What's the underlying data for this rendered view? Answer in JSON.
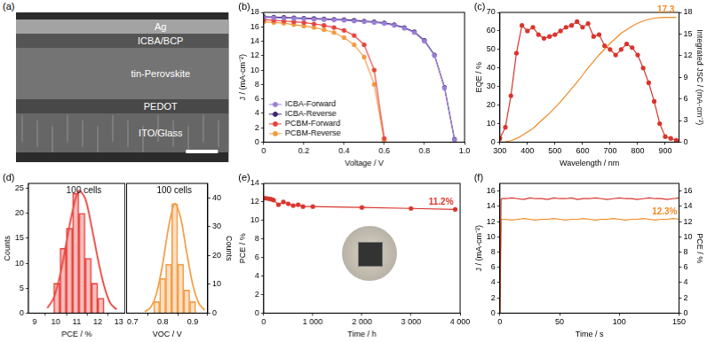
{
  "image_panel": {
    "panel": "(a)",
    "layers": [
      "Ag",
      "ICBA/BCP",
      "tin-Perovskite",
      "PEDOT",
      "ITO/Glass"
    ]
  },
  "chart_data": [
    {
      "panel": "(b)",
      "type": "line",
      "x_label": "Voltage / V",
      "y_label": "J / (mA·cm⁻²)",
      "xlim": [
        0,
        1
      ],
      "xticks": [
        0,
        0.2,
        0.4,
        0.6,
        0.8,
        {
          "value": 1,
          "label": "1.0"
        }
      ],
      "ylim": [
        0,
        18
      ],
      "yticks": [
        0,
        2,
        4,
        6,
        8,
        10,
        12,
        14,
        16,
        18
      ],
      "grid": false,
      "legend": "lower left",
      "x": [
        0,
        0.05,
        0.1,
        0.15,
        0.2,
        0.25,
        0.3,
        0.35,
        0.4,
        0.45,
        0.5,
        0.55,
        0.6,
        0.65,
        0.7,
        0.75,
        0.8,
        0.85,
        0.9,
        0.95
      ],
      "series": [
        {
          "name": "ICBA-Forward",
          "color": "#9b7fd4",
          "marker": "circle",
          "line_style": "solid",
          "values": [
            17.3,
            17.25,
            17.2,
            17.15,
            17.1,
            17.05,
            17.0,
            16.95,
            16.9,
            16.8,
            16.7,
            16.6,
            16.45,
            16.2,
            15.8,
            15.2,
            14.0,
            12.0,
            7.5,
            0.3
          ]
        },
        {
          "name": "ICBA-Reverse",
          "color": "#3b2470",
          "marker": "circle",
          "line_style": "solid",
          "values": [
            17.4,
            17.35,
            17.3,
            17.25,
            17.2,
            17.15,
            17.1,
            17.05,
            17.0,
            16.9,
            16.8,
            16.7,
            16.55,
            16.3,
            15.9,
            15.3,
            14.1,
            12.1,
            7.6,
            0.4
          ]
        },
        {
          "name": "PCBM-Forward",
          "color": "#e8423c",
          "marker": "circle",
          "line_style": "solid",
          "values": [
            17.0,
            16.9,
            16.8,
            16.7,
            16.6,
            16.4,
            16.2,
            15.9,
            15.5,
            14.8,
            13.5,
            10.0,
            0.5,
            null,
            null,
            null,
            null,
            null,
            null,
            null
          ]
        },
        {
          "name": "PCBM-Reverse",
          "color": "#f39a3c",
          "marker": "circle",
          "line_style": "solid",
          "values": [
            16.7,
            16.6,
            16.5,
            16.3,
            16.1,
            15.9,
            15.6,
            15.2,
            14.5,
            13.5,
            11.8,
            8.0,
            0.2,
            null,
            null,
            null,
            null,
            null,
            null,
            null
          ]
        }
      ]
    },
    {
      "panel": "(c)",
      "type": "line",
      "x_label": "Wavelength / nm",
      "y_label": "EQE / %",
      "y2_label": "Integrated JSC / (mA·cm⁻²)",
      "xlim": [
        300,
        950
      ],
      "xticks": [
        300,
        400,
        500,
        600,
        700,
        800,
        900
      ],
      "ylim": [
        0,
        70
      ],
      "yticks": [
        0,
        10,
        20,
        30,
        40,
        50,
        60,
        70
      ],
      "y2lim": [
        0,
        18
      ],
      "y2ticks": [
        0,
        3,
        6,
        9,
        12,
        15,
        18
      ],
      "grid": false,
      "x": [
        300,
        320,
        340,
        360,
        380,
        400,
        420,
        440,
        460,
        480,
        500,
        520,
        540,
        560,
        580,
        600,
        620,
        640,
        660,
        680,
        700,
        720,
        740,
        760,
        780,
        800,
        820,
        840,
        860,
        880,
        900,
        920,
        940
      ],
      "series": [
        {
          "color": "#d9342b",
          "marker": "circle",
          "line_style": "solid",
          "values": [
            2,
            8,
            25,
            48,
            63,
            60,
            62,
            58,
            56,
            57,
            58,
            60,
            62,
            63,
            65,
            62,
            64,
            57,
            58,
            52,
            50,
            47,
            50,
            53,
            51,
            47,
            40,
            32,
            22,
            10,
            3,
            2,
            1
          ]
        },
        {
          "color": "#f08a24",
          "line_style": "solid",
          "axis": "y2",
          "annotation": "17.3",
          "values": [
            0,
            0.05,
            0.2,
            0.5,
            0.9,
            1.4,
            1.9,
            2.6,
            3.3,
            4.0,
            4.8,
            5.6,
            6.5,
            7.4,
            8.3,
            9.3,
            10.3,
            11.2,
            12.1,
            12.9,
            13.7,
            14.4,
            15.1,
            15.6,
            16.1,
            16.5,
            16.8,
            17.05,
            17.2,
            17.28,
            17.3,
            17.3,
            17.3
          ]
        }
      ]
    },
    {
      "panel": "(d)",
      "type": "histogram",
      "grid": false,
      "subplots": [
        {
          "x_label": "PCE / %",
          "y_label": "Counts",
          "annotation": "100 cells",
          "color": "#e8423c",
          "bins": [
            9.9,
            10.2,
            10.5,
            10.8,
            11.1,
            11.4,
            11.7,
            12.0,
            12.3
          ],
          "counts": [
            6,
            13,
            17,
            24,
            20,
            11,
            6,
            3
          ],
          "xlim": [
            8.7,
            13.3
          ],
          "xticks": [
            9,
            10,
            11,
            12,
            13
          ],
          "ylim": [
            0,
            26
          ],
          "yticks": [
            0,
            5,
            10,
            15,
            20,
            25
          ],
          "series": [
            {
              "type": "line",
              "color": "#e8423c",
              "x": [
                9.6,
                9.9,
                10.2,
                10.5,
                10.8,
                11.1,
                11.4,
                11.7,
                12.0,
                12.3,
                12.6,
                12.9
              ],
              "values": [
                1,
                3,
                7.5,
                14,
                20.5,
                24.5,
                23,
                17.5,
                11,
                5.5,
                2,
                0.7
              ]
            }
          ]
        },
        {
          "x_label": "VOC / V",
          "y_label": "Counts",
          "annotation": "100 cells",
          "color": "#f4a04a",
          "bins": [
            0.77,
            0.79,
            0.81,
            0.83,
            0.85,
            0.87,
            0.89,
            0.91
          ],
          "counts": [
            4,
            12,
            17,
            38,
            17,
            8,
            4
          ],
          "xlim": [
            0.68,
            0.95
          ],
          "xticks": [
            0.7,
            0.8,
            0.9
          ],
          "ylim": [
            0,
            45
          ],
          "yticks": [
            0,
            10,
            20,
            30,
            40
          ],
          "series": [
            {
              "type": "line",
              "color": "#f4a04a",
              "x": [
                0.74,
                0.76,
                0.78,
                0.8,
                0.82,
                0.84,
                0.86,
                0.88,
                0.9,
                0.92,
                0.94
              ],
              "values": [
                0.5,
                2,
                7,
                17,
                30,
                38,
                33,
                21,
                10,
                3.5,
                1
              ]
            }
          ]
        }
      ]
    },
    {
      "panel": "(e)",
      "type": "line",
      "x_label": "Time / h",
      "y_label": "PCE / %",
      "xlim": [
        0,
        4000
      ],
      "xticks": [
        0,
        {
          "value": 1000,
          "label": "1 000"
        },
        {
          "value": 2000,
          "label": "2 000"
        },
        {
          "value": 3000,
          "label": "3 000"
        },
        {
          "value": 4000,
          "label": "4 000"
        }
      ],
      "ylim": [
        0,
        14
      ],
      "yticks": [
        0,
        2,
        4,
        6,
        8,
        10,
        12,
        14
      ],
      "grid": false,
      "x": [
        0,
        50,
        100,
        150,
        200,
        300,
        400,
        500,
        600,
        700,
        800,
        1000,
        2000,
        3000,
        3900
      ],
      "series": [
        {
          "color": "#d9342b",
          "marker": "circle",
          "line_style": "solid",
          "annotation": "11.2%",
          "values": [
            12.4,
            12.4,
            12.35,
            12.3,
            12.2,
            11.7,
            12.0,
            11.8,
            11.6,
            11.7,
            11.5,
            11.5,
            11.4,
            11.3,
            11.2
          ]
        }
      ]
    },
    {
      "panel": "(f)",
      "type": "line",
      "x_label": "Time / s",
      "y_label": "J / (mA·cm⁻²)",
      "y2_label": "PCE / %",
      "xlim": [
        0,
        150
      ],
      "xticks": [
        0,
        50,
        100,
        150
      ],
      "ylim": [
        0,
        17
      ],
      "yticks": [
        0,
        2,
        4,
        6,
        8,
        10,
        12,
        14,
        16
      ],
      "y2lim": [
        0,
        17
      ],
      "y2ticks": [
        0,
        2,
        4,
        6,
        8,
        10,
        12,
        14,
        16
      ],
      "grid": false,
      "x": [
        0,
        1,
        2,
        5,
        10,
        15,
        20,
        25,
        30,
        35,
        40,
        45,
        50,
        55,
        60,
        65,
        70,
        75,
        80,
        85,
        90,
        95,
        100,
        105,
        110,
        115,
        120,
        125,
        130,
        135,
        140,
        145,
        150
      ],
      "series": [
        {
          "color": "#d9342b",
          "line_style": "solid",
          "values": [
            0,
            14.9,
            15.0,
            15.0,
            15.1,
            15.0,
            14.9,
            15.1,
            15.0,
            15.0,
            14.9,
            15.1,
            15.0,
            15.0,
            15.1,
            14.9,
            15.0,
            15.0,
            15.1,
            15.0,
            14.9,
            15.0,
            15.1,
            15.0,
            15.0,
            14.9,
            15.0,
            15.1,
            15.0,
            15.0,
            14.9,
            15.0,
            15.1
          ]
        },
        {
          "color": "#f08a24",
          "line_style": "solid",
          "axis": "y2",
          "annotation": "12.3%",
          "values": [
            0,
            12.2,
            12.3,
            12.3,
            12.2,
            12.3,
            12.4,
            12.3,
            12.2,
            12.3,
            12.3,
            12.4,
            12.3,
            12.2,
            12.3,
            12.3,
            12.4,
            12.3,
            12.2,
            12.3,
            12.3,
            12.4,
            12.3,
            12.2,
            12.3,
            12.3,
            12.4,
            12.3,
            12.2,
            12.3,
            12.3,
            12.4,
            12.3
          ]
        }
      ]
    }
  ]
}
